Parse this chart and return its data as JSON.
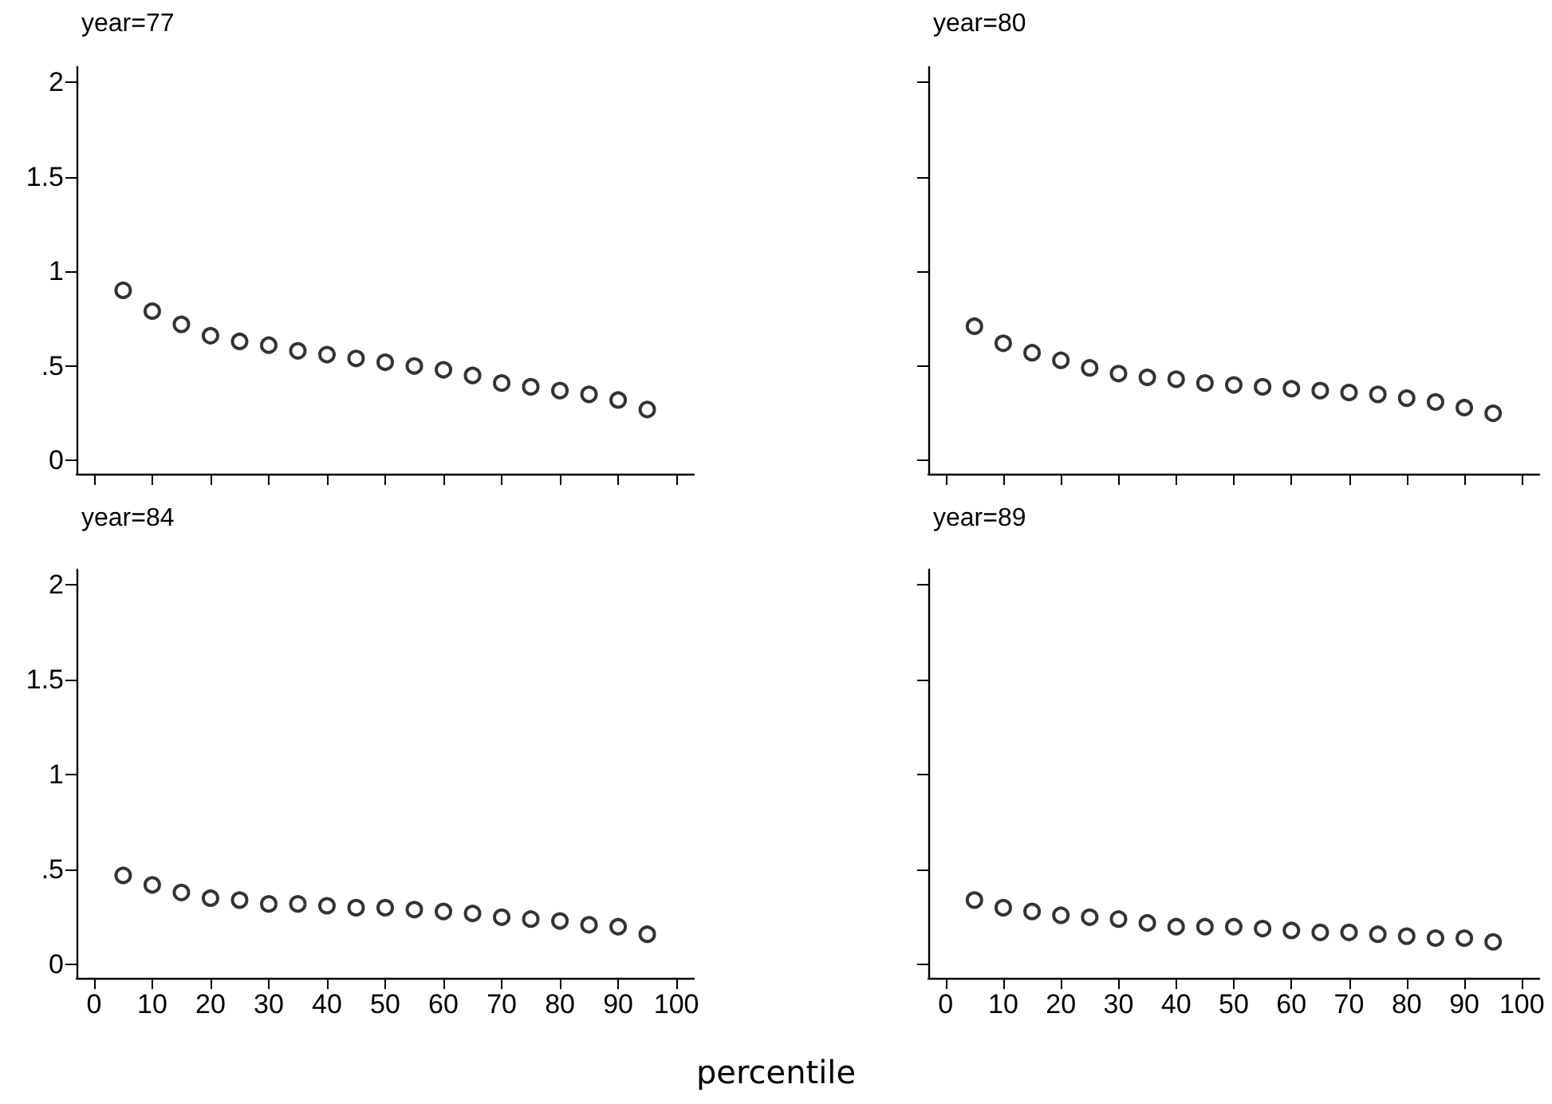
{
  "chart_data": [
    {
      "type": "scatter",
      "title": "year=77",
      "marker": "circle",
      "grid": false,
      "tick_labels": "y",
      "xlim": [
        -3,
        103
      ],
      "xticks": [
        {
          "value": 0,
          "label": null
        },
        {
          "value": 10,
          "label": null
        },
        {
          "value": 20,
          "label": null
        },
        {
          "value": 30,
          "label": null
        },
        {
          "value": 40,
          "label": null
        },
        {
          "value": 50,
          "label": null
        },
        {
          "value": 60,
          "label": null
        },
        {
          "value": 70,
          "label": null
        },
        {
          "value": 80,
          "label": null
        },
        {
          "value": 90,
          "label": null
        },
        {
          "value": 100,
          "label": null
        }
      ],
      "ylim": [
        -0.07,
        2.08
      ],
      "yticks": [
        0,
        {
          "value": 0.5,
          "label": ".5"
        },
        1,
        1.5,
        2
      ],
      "x": [
        5,
        10,
        15,
        20,
        25,
        30,
        35,
        40,
        45,
        50,
        55,
        60,
        65,
        70,
        75,
        80,
        85,
        90,
        95
      ],
      "series": [
        {
          "color": "#000000",
          "values": [
            0.9,
            0.79,
            0.72,
            0.66,
            0.63,
            0.61,
            0.58,
            0.56,
            0.54,
            0.52,
            0.5,
            0.48,
            0.45,
            0.41,
            0.39,
            0.37,
            0.35,
            0.32,
            0.27
          ]
        }
      ]
    },
    {
      "type": "scatter",
      "title": "year=80",
      "marker": "circle",
      "grid": false,
      "tick_labels": false,
      "xlim": [
        -3,
        103
      ],
      "xticks": [
        {
          "value": 0,
          "label": null
        },
        {
          "value": 10,
          "label": null
        },
        {
          "value": 20,
          "label": null
        },
        {
          "value": 30,
          "label": null
        },
        {
          "value": 40,
          "label": null
        },
        {
          "value": 50,
          "label": null
        },
        {
          "value": 60,
          "label": null
        },
        {
          "value": 70,
          "label": null
        },
        {
          "value": 80,
          "label": null
        },
        {
          "value": 90,
          "label": null
        },
        {
          "value": 100,
          "label": null
        }
      ],
      "ylim": [
        -0.07,
        2.08
      ],
      "yticks": [
        {
          "value": 0,
          "label": null
        },
        {
          "value": 0.5,
          "label": null
        },
        {
          "value": 1,
          "label": null
        },
        {
          "value": 1.5,
          "label": null
        },
        {
          "value": 2,
          "label": null
        }
      ],
      "x": [
        5,
        10,
        15,
        20,
        25,
        30,
        35,
        40,
        45,
        50,
        55,
        60,
        65,
        70,
        75,
        80,
        85,
        90,
        95
      ],
      "series": [
        {
          "color": "#000000",
          "values": [
            0.71,
            0.62,
            0.57,
            0.53,
            0.49,
            0.46,
            0.44,
            0.43,
            0.41,
            0.4,
            0.39,
            0.38,
            0.37,
            0.36,
            0.35,
            0.33,
            0.31,
            0.28,
            0.25
          ]
        }
      ]
    },
    {
      "type": "scatter",
      "title": "year=84",
      "xlabel": "percentile",
      "marker": "circle",
      "grid": false,
      "xlim": [
        -3,
        103
      ],
      "xticks": [
        0,
        10,
        20,
        30,
        40,
        50,
        60,
        70,
        80,
        90,
        100
      ],
      "ylim": [
        -0.07,
        2.08
      ],
      "yticks": [
        0,
        {
          "value": 0.5,
          "label": ".5"
        },
        1,
        1.5,
        2
      ],
      "x": [
        5,
        10,
        15,
        20,
        25,
        30,
        35,
        40,
        45,
        50,
        55,
        60,
        65,
        70,
        75,
        80,
        85,
        90,
        95
      ],
      "series": [
        {
          "color": "#000000",
          "values": [
            0.47,
            0.42,
            0.38,
            0.35,
            0.34,
            0.32,
            0.32,
            0.31,
            0.3,
            0.3,
            0.29,
            0.28,
            0.27,
            0.25,
            0.24,
            0.23,
            0.21,
            0.2,
            0.16
          ]
        }
      ]
    },
    {
      "type": "scatter",
      "title": "year=89",
      "marker": "circle",
      "grid": false,
      "tick_labels": "x",
      "xlim": [
        -3,
        103
      ],
      "xticks": [
        0,
        10,
        20,
        30,
        40,
        50,
        60,
        70,
        80,
        90,
        100
      ],
      "ylim": [
        -0.07,
        2.08
      ],
      "yticks": [
        {
          "value": 0,
          "label": null
        },
        {
          "value": 0.5,
          "label": null
        },
        {
          "value": 1,
          "label": null
        },
        {
          "value": 1.5,
          "label": null
        },
        {
          "value": 2,
          "label": null
        }
      ],
      "x": [
        5,
        10,
        15,
        20,
        25,
        30,
        35,
        40,
        45,
        50,
        55,
        60,
        65,
        70,
        75,
        80,
        85,
        90,
        95
      ],
      "series": [
        {
          "color": "#000000",
          "values": [
            0.34,
            0.3,
            0.28,
            0.26,
            0.25,
            0.24,
            0.22,
            0.2,
            0.2,
            0.2,
            0.19,
            0.18,
            0.17,
            0.17,
            0.16,
            0.15,
            0.14,
            0.14,
            0.12
          ]
        }
      ]
    }
  ]
}
